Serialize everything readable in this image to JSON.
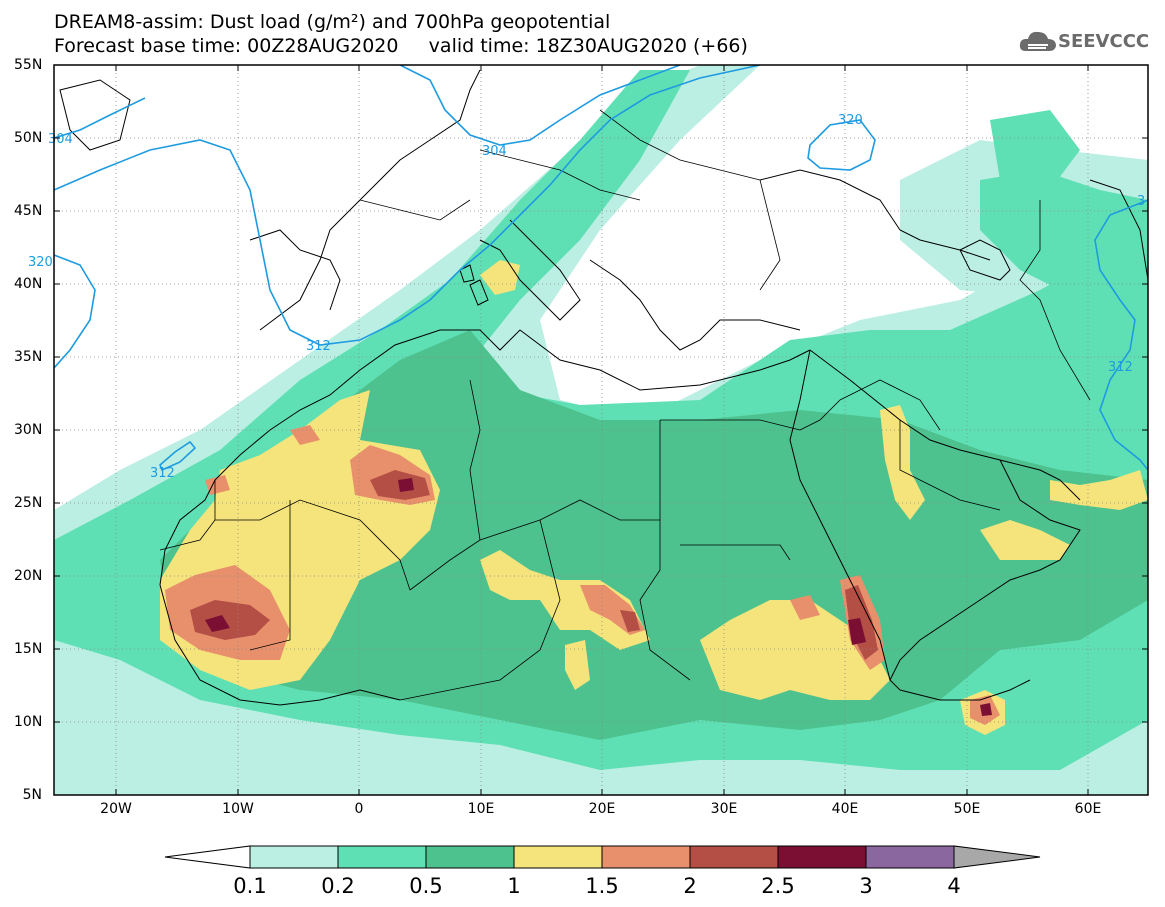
{
  "title_line1": "DREAM8-assim: Dust load (g/m²) and 700hPa geopotential",
  "title_line2": "Forecast base time: 00Z28AUG2020     valid time: 18Z30AUG2020 (+66)",
  "logo_text": "SEEVCCC",
  "lat_labels": [
    "55N",
    "50N",
    "45N",
    "40N",
    "35N",
    "30N",
    "25N",
    "20N",
    "15N",
    "10N",
    "5N"
  ],
  "lon_labels": [
    "20W",
    "10W",
    "0",
    "10E",
    "20E",
    "30E",
    "40E",
    "50E",
    "60E"
  ],
  "contour_labels": [
    "304",
    "304",
    "320",
    "3",
    "320",
    "312",
    "312",
    "312"
  ],
  "colorbar": {
    "levels": [
      "0.1",
      "0.2",
      "0.5",
      "1",
      "1.5",
      "2",
      "2.5",
      "3",
      "4"
    ],
    "colors": [
      "#ffffff",
      "#bcefe3",
      "#5fe0b4",
      "#4dc28f",
      "#f5e47c",
      "#e8906b",
      "#b44f45",
      "#7a0f33",
      "#8b67a0",
      "#a8a8a8"
    ]
  },
  "colors": {
    "land": "#ffffff",
    "coast": "#000000",
    "geopotential": "#1e9be0",
    "dust_01": "#bcefe3",
    "dust_02": "#5fe0b4",
    "dust_05": "#4dc28f",
    "dust_1": "#f5e47c",
    "dust_15": "#e8906b",
    "dust_2": "#b44f45",
    "dust_25": "#7a0f33"
  }
}
